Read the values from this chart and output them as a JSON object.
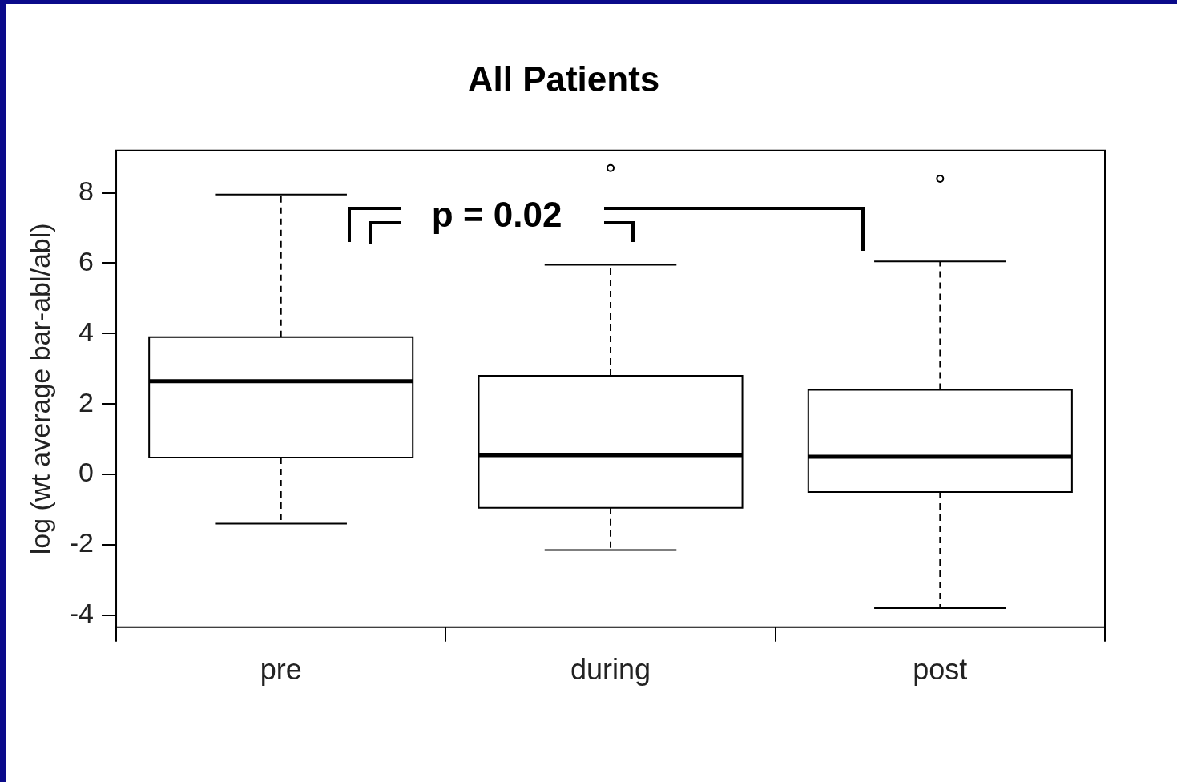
{
  "chart_data": {
    "type": "box",
    "title": "All Patients",
    "ylabel": "log (wt average bar-abl/abl)",
    "categories": [
      "pre",
      "during",
      "post"
    ],
    "boxes": [
      {
        "low": -1.4,
        "q1": 0.48,
        "median": 2.65,
        "q3": 3.9,
        "high": 7.95
      },
      {
        "low": -2.15,
        "q1": -0.95,
        "median": 0.55,
        "q3": 2.8,
        "high": 5.95,
        "outliers": [
          8.7
        ]
      },
      {
        "low": -3.8,
        "q1": -0.5,
        "median": 0.5,
        "q3": 2.4,
        "high": 6.05,
        "outliers": [
          8.4
        ]
      }
    ],
    "ylim": [
      -4.34,
      9.2
    ],
    "yticks": [
      -4,
      -2,
      0,
      2,
      4,
      6,
      8
    ],
    "grid": false,
    "legend": false,
    "annotations": [
      "p = 0.02"
    ]
  }
}
